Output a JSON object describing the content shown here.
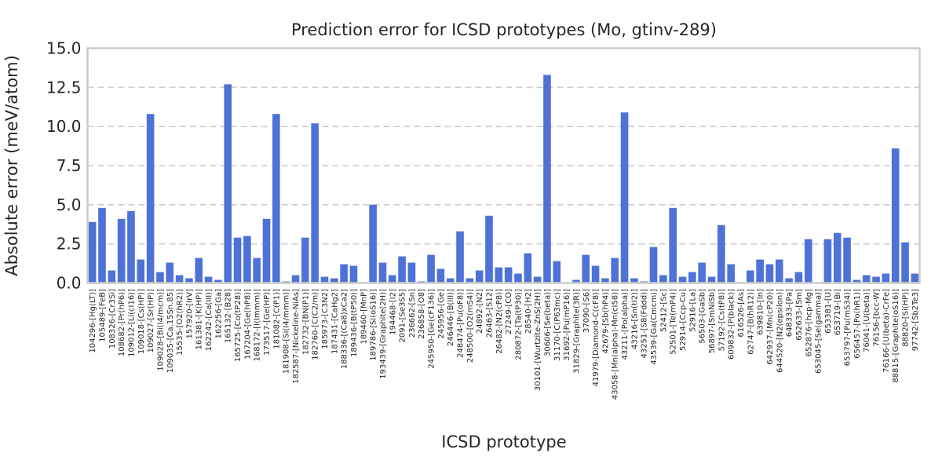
{
  "chart_data": {
    "type": "bar",
    "title": "Prediction error for ICSD prototypes (Mo, gtinv-289)",
    "xlabel": "ICSD prototype",
    "ylabel": "Absolute error (meV/atom)",
    "ylim": [
      0,
      15
    ],
    "yticks": [
      "0.0",
      "2.5",
      "5.0",
      "7.5",
      "10.0",
      "12.5",
      "15.0"
    ],
    "grid": "horizontal dashed",
    "bar_color": "#4e72d6",
    "categories": [
      "104296-[Hg(LT)]",
      "105489-[FeB]",
      "108326-[Cr3Si]",
      "108682-[Pr(hP6)]",
      "109012-[Li(cI16)]",
      "109018-[Cs(HP)]",
      "109027-[Sr(HP)]",
      "109028-[Bi(I4/mcm)]",
      "109035-[Ca.15Sn.85]",
      "15535-[O2(hR2)]",
      "157920-[IrV]",
      "161381-[K(HP)]",
      "162242-[Ca(III)]",
      "162256-[Ga]",
      "165132-[B28]",
      "165725-[Co(tP28)]",
      "167204-[Ge(hP8)]",
      "168172-[I(Immm)]",
      "173517-[Ge(HP)]",
      "181082-[C(P1)]",
      "181908-[Si(I4/mmm)]",
      "182587-[Nickeline-NiAs]",
      "182732-[BN(P1)]",
      "182760-[C(C2/m)]",
      "185973-[C3N2]",
      "187431-[CaHg2]",
      "188336-[(Ca8)xCa2]",
      "189436-[B(tP50)]",
      "189460-[MnP]",
      "189786-[Si(oS16)]",
      "193439-[Graphite(2H)]",
      "194468-[I2]",
      "2091-[Se3S5]",
      "236662-[Sn]",
      "236858-[O8]",
      "245950-[Ge(cF136)]",
      "245956-[Ge]",
      "246446-[B(III)]",
      "248474-[Pu(oF8)]",
      "248500-[O2(mS4)]",
      "24892-[N2]",
      "26463-[S12]",
      "26482-[N2(cP8)]",
      "27249-[CO]",
      "280872-[Ta(tP30)]",
      "28540-[H2]",
      "30101-[Wurtzite-ZnS(2H)]",
      "30606-[Se(beta)]",
      "31170-[C(P63mc)]",
      "31692-[Pu(mP16)]",
      "31829-[Graphite(3R)]",
      "37090-[S6]",
      "41979-[Diamond-C(cF8)]",
      "42679-[Sb(hP4)]",
      "43058-[Mn(alpha)-Mn(cI58)]",
      "43211-[Po(alpha)]",
      "43216-[Sn(tI2)]",
      "43251-[S8(Fddd)]",
      "43539-[Ga(Cmcm)]",
      "52412-[Sc]",
      "52501-[Te(mP4)]",
      "52914-[Ccp-Cu]",
      "52916-[La]",
      "56503-[GaSb]",
      "56897-[SmNiSb]",
      "57192-[Cs(tP8)]",
      "609832-[P(black)]",
      "616526-[As]",
      "62747-[B(hR12)]",
      "639810-[In]",
      "642937-[Mn(cP20)]",
      "644520-[N2(epsilon)]",
      "648333-[Pa]",
      "652633-[Sm]",
      "652876-[hcp-Mg]",
      "653045-[Se(gamma)]",
      "653381-[U]",
      "653719-[Bi]",
      "653797-[Pu(mS34)]",
      "656457-[Po(hR1)]",
      "76041-[U(beta)]",
      "76156-[bcc-W]",
      "76166-[U(beta)-CrFe]",
      "88815-[Graphite(oS16)]",
      "88820-[Si(HP)]",
      "97742-[Sb2Te3]"
    ],
    "values": [
      3.9,
      4.8,
      0.8,
      4.1,
      4.6,
      1.5,
      10.8,
      0.7,
      1.3,
      0.5,
      0.3,
      1.6,
      0.4,
      0.2,
      12.7,
      2.9,
      3.0,
      1.6,
      4.1,
      10.8,
      0.1,
      0.5,
      2.9,
      10.2,
      0.4,
      0.3,
      1.2,
      1.1,
      0.0,
      5.0,
      1.3,
      0.5,
      1.7,
      1.3,
      0.1,
      1.8,
      0.9,
      0.3,
      3.3,
      0.3,
      0.8,
      4.3,
      1.0,
      1.0,
      0.6,
      1.9,
      0.4,
      13.3,
      1.4,
      0.0,
      0.2,
      1.8,
      1.1,
      0.3,
      1.6,
      10.9,
      0.3,
      0.1,
      2.3,
      0.5,
      4.8,
      0.4,
      0.7,
      1.3,
      0.4,
      3.7,
      1.2,
      0.0,
      0.8,
      1.5,
      1.2,
      1.5,
      0.3,
      0.7,
      2.8,
      0.0,
      2.8,
      3.2,
      2.9,
      0.2,
      0.5,
      0.4,
      0.6,
      8.6,
      2.6,
      0.6
    ]
  }
}
